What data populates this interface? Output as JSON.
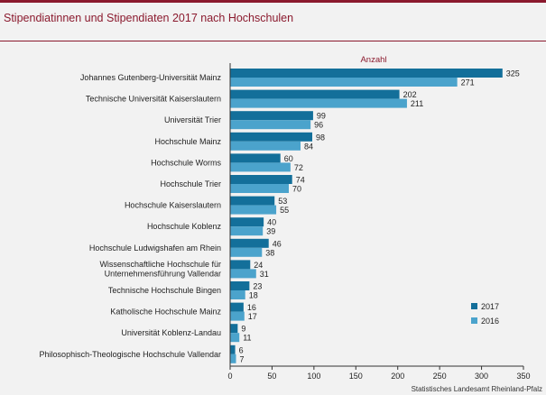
{
  "header": {
    "title": "Stipendiatinnen und Stipendiaten 2017 nach Hochschulen"
  },
  "source": "Statistisches Landesamt Rheinland-Pfalz",
  "colors": {
    "accent": "#8b1a2e",
    "series_2017": "#136f9a",
    "series_2016": "#4ba3cc",
    "background": "#f2f2f2"
  },
  "chart_data": {
    "type": "bar",
    "orientation": "horizontal",
    "title": "Stipendiatinnen und Stipendiaten 2017 nach Hochschulen",
    "xlabel": "Anzahl",
    "xlim": [
      0,
      350
    ],
    "xticks": [
      0,
      50,
      100,
      150,
      200,
      250,
      300,
      350
    ],
    "grid": false,
    "legend_position": "bottom-right",
    "categories": [
      "Johannes Gutenberg-Universität Mainz",
      "Technische Universität Kaiserslautern",
      "Universität Trier",
      "Hochschule Mainz",
      "Hochschule Worms",
      "Hochschule Trier",
      "Hochschule Kaiserslautern",
      "Hochschule Koblenz",
      "Hochschule Ludwigshafen am Rhein",
      "Wissenschaftliche Hochschule für\nUnternehmensführung Vallendar",
      "Technische Hochschule Bingen",
      "Katholische Hochschule Mainz",
      "Universität Koblenz-Landau",
      "Philosophisch-Theologische Hochschule Vallendar"
    ],
    "series": [
      {
        "name": "2017",
        "values": [
          325,
          202,
          99,
          98,
          60,
          74,
          53,
          40,
          46,
          24,
          23,
          16,
          9,
          6
        ]
      },
      {
        "name": "2016",
        "values": [
          271,
          211,
          96,
          84,
          72,
          70,
          55,
          39,
          38,
          31,
          18,
          17,
          11,
          7
        ]
      }
    ]
  }
}
